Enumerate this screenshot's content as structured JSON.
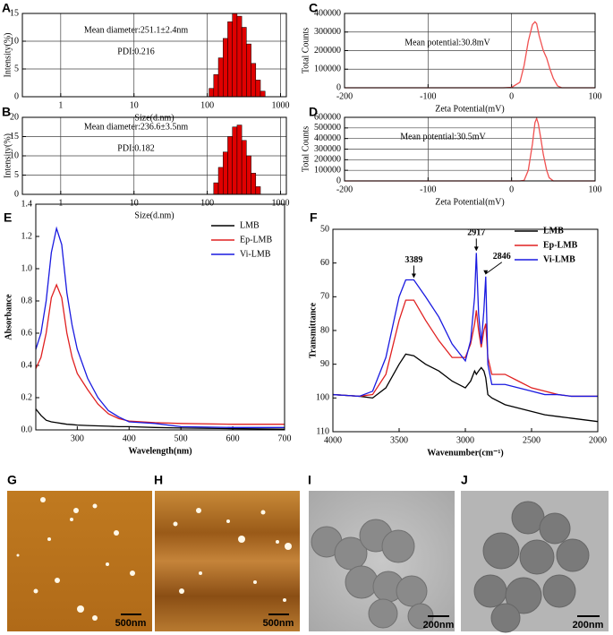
{
  "chart_data": [
    {
      "type": "histogram",
      "panel": "A",
      "xscale": "log",
      "xlim": [
        0.3,
        1200
      ],
      "xticks": [
        1,
        10,
        100,
        1000
      ],
      "ylim": [
        0,
        15
      ],
      "yticks": [
        0,
        5,
        10,
        15
      ],
      "grid": true,
      "x_label": "Size(d.nm)",
      "y_label": "Intensity(%)",
      "annotations": [
        "Mean diameter:251.1±2.4nm",
        "PDI:0.216"
      ],
      "color": "#e00000",
      "bins": [
        105.7,
        122.4,
        141.8,
        164.2,
        190.1,
        220.2,
        255.0,
        295.3,
        342.0,
        396.1,
        458.7,
        531.2,
        615.1
      ],
      "counts": [
        1.5,
        4,
        7,
        10.5,
        13.5,
        15,
        14.5,
        12.5,
        9.5,
        6,
        3,
        1
      ]
    },
    {
      "type": "histogram",
      "panel": "B",
      "xscale": "log",
      "xlim": [
        0.3,
        1200
      ],
      "xticks": [
        1,
        10,
        100,
        1000
      ],
      "ylim": [
        0,
        20
      ],
      "yticks": [
        0,
        5,
        10,
        15,
        20
      ],
      "grid": true,
      "x_label": "Size(d.nm)",
      "y_label": "Intensity(%)",
      "annotations": [
        "Mean diameter:236.6±3.5nm",
        "PDI:0.182"
      ],
      "color": "#e00000",
      "bins": [
        122.4,
        141.8,
        164.2,
        190.1,
        220.2,
        255.0,
        295.3,
        342.0,
        396.1,
        458.7,
        531.2
      ],
      "counts": [
        3,
        7,
        11,
        15,
        17.5,
        18,
        14,
        10,
        5.5,
        2
      ]
    },
    {
      "type": "line",
      "panel": "C",
      "xlim": [
        -200,
        100
      ],
      "xticks": [
        -200,
        -100,
        0,
        100
      ],
      "ylim": [
        0,
        400000
      ],
      "yticks": [
        0,
        100000,
        200000,
        300000,
        400000
      ],
      "grid": true,
      "x_label": "Zeta Potential(mV)",
      "y_label": "Total Counts",
      "annotations": [
        "Mean potential:30.8mV"
      ],
      "color": "#f05050",
      "x": [
        -200,
        -10,
        0,
        10,
        15,
        20,
        25,
        28,
        30,
        33,
        38,
        42,
        46,
        50,
        55,
        60,
        100
      ],
      "values": [
        0,
        0,
        2000,
        30000,
        120000,
        250000,
        340000,
        355000,
        345000,
        280000,
        200000,
        160000,
        100000,
        50000,
        10000,
        0,
        0
      ]
    },
    {
      "type": "line",
      "panel": "D",
      "xlim": [
        -200,
        100
      ],
      "xticks": [
        -200,
        -100,
        0,
        100
      ],
      "ylim": [
        0,
        600000
      ],
      "yticks": [
        0,
        100000,
        200000,
        300000,
        400000,
        500000,
        600000
      ],
      "grid": true,
      "x_label": "Zeta Potential(mV)",
      "y_label": "Total Counts",
      "annotations": [
        "Mean potential:30.5mV"
      ],
      "color": "#f05050",
      "x": [
        -200,
        10,
        15,
        20,
        25,
        28,
        30,
        32,
        35,
        38,
        42,
        45,
        50,
        100
      ],
      "values": [
        0,
        0,
        5000,
        100000,
        350000,
        550000,
        590000,
        540000,
        400000,
        250000,
        100000,
        30000,
        0,
        0
      ]
    },
    {
      "type": "line",
      "panel": "E",
      "xlim": [
        220,
        700
      ],
      "xticks": [
        300,
        400,
        500,
        600,
        700
      ],
      "ylim": [
        0,
        1.4
      ],
      "yticks": [
        {
          "value": 0,
          "label": "0.0"
        },
        0.2,
        0.4,
        0.6,
        0.8,
        {
          "value": 1,
          "label": "1.0"
        },
        1.2,
        1.4
      ],
      "grid": false,
      "legend": "top-right",
      "x_label": "Wavelength(nm)",
      "y_label": "Absorbance",
      "x": [
        220,
        230,
        240,
        250,
        260,
        270,
        280,
        290,
        300,
        320,
        340,
        360,
        380,
        400,
        450,
        500,
        600,
        700
      ],
      "series": [
        {
          "name": "LMB",
          "color": "#000000",
          "values": [
            0.13,
            0.09,
            0.06,
            0.05,
            0.045,
            0.04,
            0.035,
            0.033,
            0.03,
            0.027,
            0.025,
            0.023,
            0.02,
            0.02,
            0.015,
            0.012,
            0.008,
            0.005
          ]
        },
        {
          "name": "Ep-LMB",
          "color": "#e02020",
          "values": [
            0.38,
            0.45,
            0.6,
            0.82,
            0.9,
            0.82,
            0.6,
            0.45,
            0.35,
            0.25,
            0.16,
            0.1,
            0.07,
            0.055,
            0.045,
            0.04,
            0.035,
            0.035
          ]
        },
        {
          "name": "Vi-LMB",
          "color": "#1a1ae0",
          "values": [
            0.5,
            0.6,
            0.8,
            1.1,
            1.25,
            1.15,
            0.85,
            0.65,
            0.5,
            0.32,
            0.2,
            0.12,
            0.08,
            0.05,
            0.04,
            0.02,
            0.015,
            0.015
          ]
        }
      ]
    },
    {
      "type": "line",
      "panel": "F",
      "xlim": [
        4000,
        2000
      ],
      "xticks": [
        4000,
        3500,
        3000,
        2500,
        2000
      ],
      "ylim": [
        110,
        50
      ],
      "yticks": [
        50,
        60,
        70,
        80,
        90,
        100,
        110
      ],
      "grid": false,
      "legend": "top-right",
      "x_label": "Wavenumber(cm⁻¹)",
      "y_label": "Transmittance",
      "peak_labels": [
        3389,
        2917,
        2846
      ],
      "x": [
        4000,
        3800,
        3700,
        3600,
        3500,
        3450,
        3389,
        3300,
        3200,
        3100,
        3000,
        2960,
        2930,
        2917,
        2900,
        2880,
        2860,
        2846,
        2830,
        2800,
        2700,
        2600,
        2500,
        2400,
        2300,
        2200,
        2100,
        2000
      ],
      "series": [
        {
          "name": "LMB",
          "color": "#000000",
          "values": [
            99,
            99.5,
            100,
            97,
            90,
            87,
            87.5,
            90,
            92,
            95,
            97,
            95,
            92,
            93,
            92,
            91,
            92,
            94,
            99,
            100,
            102,
            103,
            104,
            105,
            105.5,
            106,
            106.5,
            107
          ]
        },
        {
          "name": "Ep-LMB",
          "color": "#e02020",
          "values": [
            99,
            99.5,
            99,
            93,
            77,
            71,
            71,
            77,
            83,
            88,
            88,
            84,
            78,
            74,
            80,
            85,
            80,
            78,
            88,
            93,
            93,
            95,
            97,
            98,
            99,
            99.5,
            99.5,
            99.5
          ]
        },
        {
          "name": "Vi-LMB",
          "color": "#1a1ae0",
          "values": [
            99,
            99.5,
            98,
            88,
            70,
            65,
            65,
            70,
            76,
            84,
            89,
            83,
            70,
            57,
            75,
            84,
            74,
            64,
            90,
            96,
            96,
            97,
            98,
            99,
            99,
            99.5,
            99.5,
            99.5
          ]
        }
      ]
    }
  ],
  "images": [
    {
      "panel": "G",
      "scale_bar": "500nm"
    },
    {
      "panel": "H",
      "scale_bar": "500nm"
    },
    {
      "panel": "I",
      "scale_bar": "200nm"
    },
    {
      "panel": "J",
      "scale_bar": "200nm"
    }
  ]
}
